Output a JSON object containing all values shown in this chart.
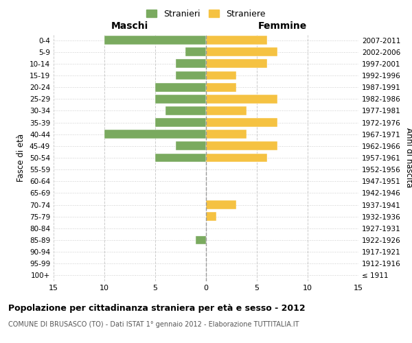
{
  "age_groups": [
    "100+",
    "95-99",
    "90-94",
    "85-89",
    "80-84",
    "75-79",
    "70-74",
    "65-69",
    "60-64",
    "55-59",
    "50-54",
    "45-49",
    "40-44",
    "35-39",
    "30-34",
    "25-29",
    "20-24",
    "15-19",
    "10-14",
    "5-9",
    "0-4"
  ],
  "birth_years": [
    "≤ 1911",
    "1912-1916",
    "1917-1921",
    "1922-1926",
    "1927-1931",
    "1932-1936",
    "1937-1941",
    "1942-1946",
    "1947-1951",
    "1952-1956",
    "1957-1961",
    "1962-1966",
    "1967-1971",
    "1972-1976",
    "1977-1981",
    "1982-1986",
    "1987-1991",
    "1992-1996",
    "1997-2001",
    "2002-2006",
    "2007-2011"
  ],
  "maschi": [
    0,
    0,
    0,
    1,
    0,
    0,
    0,
    0,
    0,
    0,
    5,
    3,
    10,
    5,
    4,
    5,
    5,
    3,
    3,
    2,
    10
  ],
  "femmine": [
    0,
    0,
    0,
    0,
    0,
    1,
    3,
    0,
    0,
    0,
    6,
    7,
    4,
    7,
    4,
    7,
    3,
    3,
    6,
    7,
    6
  ],
  "maschi_color": "#7aaa5f",
  "femmine_color": "#f5c242",
  "bg_color": "#ffffff",
  "grid_color": "#cccccc",
  "center_line_color": "#999999",
  "title": "Popolazione per cittadinanza straniera per età e sesso - 2012",
  "subtitle": "COMUNE DI BRUSASCO (TO) - Dati ISTAT 1° gennaio 2012 - Elaborazione TUTTITALIA.IT",
  "xlabel_left": "Maschi",
  "xlabel_right": "Femmine",
  "ylabel_left": "Fasce di età",
  "ylabel_right": "Anni di nascita",
  "legend_maschi": "Stranieri",
  "legend_femmine": "Straniere",
  "xlim": 15,
  "bar_height": 0.75
}
